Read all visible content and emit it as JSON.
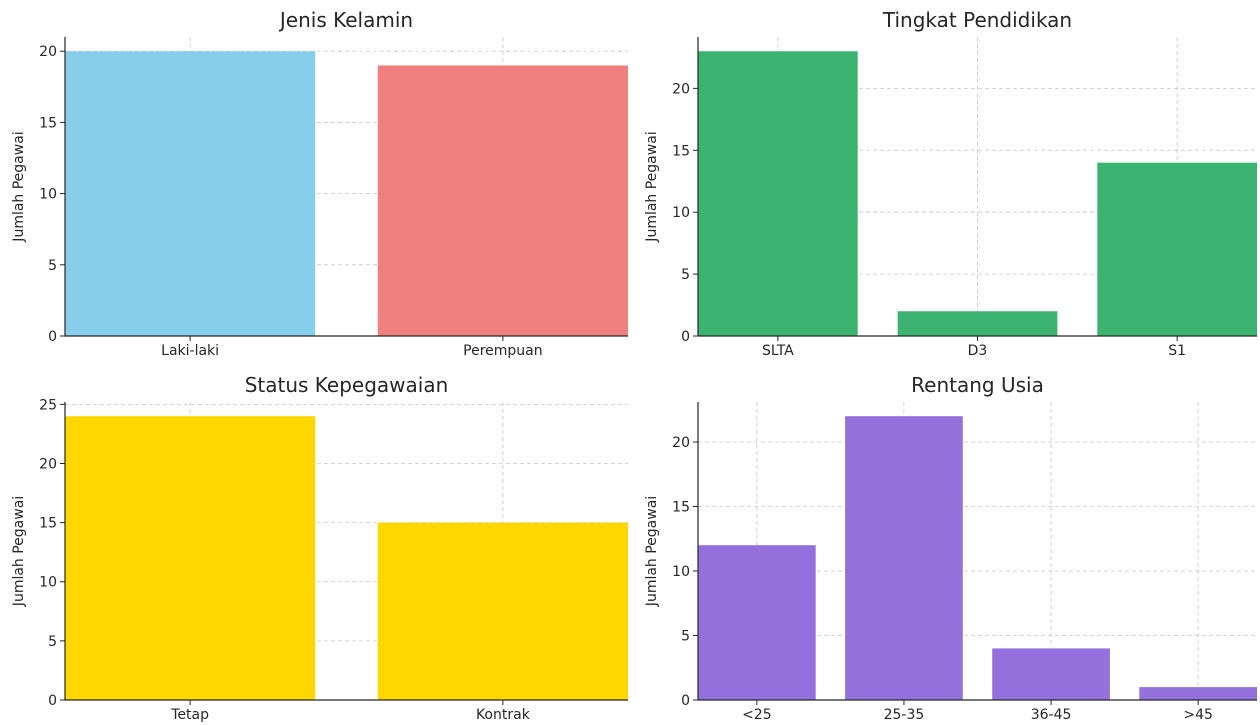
{
  "chart_data": [
    {
      "type": "bar",
      "title": "Jenis Kelamin",
      "xlabel": "",
      "ylabel": "Jumlah Pegawai",
      "categories": [
        "Laki-laki",
        "Perempuan"
      ],
      "values": [
        20,
        19
      ],
      "ylim": [
        0,
        21
      ],
      "yticks": [
        0,
        5,
        10,
        15,
        20
      ],
      "color": "#87CEEB",
      "colors": [
        "#87CEEB",
        "#F08080"
      ],
      "grid": true
    },
    {
      "type": "bar",
      "title": "Tingkat Pendidikan",
      "xlabel": "",
      "ylabel": "Jumlah Pegawai",
      "categories": [
        "SLTA",
        "D3",
        "S1"
      ],
      "values": [
        23,
        2,
        14
      ],
      "ylim": [
        0,
        24.15
      ],
      "yticks": [
        0,
        5,
        10,
        15,
        20
      ],
      "color": "#3CB371",
      "colors": [
        "#3CB371",
        "#3CB371",
        "#3CB371"
      ],
      "grid": true
    },
    {
      "type": "bar",
      "title": "Status Kepegawaian",
      "xlabel": "",
      "ylabel": "Jumlah Pegawai",
      "categories": [
        "Tetap",
        "Kontrak"
      ],
      "values": [
        24,
        15
      ],
      "ylim": [
        0,
        25.2
      ],
      "yticks": [
        0,
        5,
        10,
        15,
        20,
        25
      ],
      "color": "#FFD700",
      "colors": [
        "#FFD700",
        "#FFD700"
      ],
      "grid": true
    },
    {
      "type": "bar",
      "title": "Rentang Usia",
      "xlabel": "",
      "ylabel": "Jumlah Pegawai",
      "categories": [
        "<25",
        "25-35",
        "36-45",
        ">45"
      ],
      "values": [
        12,
        22,
        4,
        1
      ],
      "ylim": [
        0,
        23.1
      ],
      "yticks": [
        0,
        5,
        10,
        15,
        20
      ],
      "color": "#9370DB",
      "colors": [
        "#9370DB",
        "#9370DB",
        "#9370DB",
        "#9370DB"
      ],
      "grid": true
    }
  ]
}
